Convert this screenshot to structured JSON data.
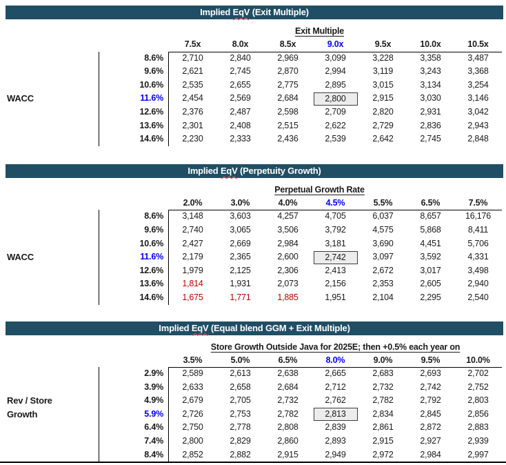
{
  "colors": {
    "title_bar_bg": "#204E64",
    "title_text": "#FFFFFF",
    "accent_blue": "#0000FF",
    "negative_red": "#C00000",
    "boxed_cell_bg": "#ECECEC",
    "squiggle_red": "#FF5A5A"
  },
  "tables": [
    {
      "id": "exit-multiple",
      "title": {
        "pre": "Implied",
        "word": "EqV",
        "post": "(Exit Multiple)"
      },
      "column_axis_label": "Exit Multiple",
      "row_axis_label_lines": [
        "WACC"
      ],
      "row_axis_label_start_row": 3,
      "column_headers": [
        "7.5x",
        "8.0x",
        "8.5x",
        "9.0x",
        "9.5x",
        "10.0x",
        "10.5x"
      ],
      "highlight_col": 3,
      "highlight_row": 3,
      "boxed_cell": {
        "row": 3,
        "col": 3
      },
      "red_cells": [],
      "rows": [
        {
          "header": "8.6%",
          "values": [
            "2,710",
            "2,840",
            "2,969",
            "3,099",
            "3,228",
            "3,358",
            "3,487"
          ]
        },
        {
          "header": "9.6%",
          "values": [
            "2,621",
            "2,745",
            "2,870",
            "2,994",
            "3,119",
            "3,243",
            "3,368"
          ]
        },
        {
          "header": "10.6%",
          "values": [
            "2,535",
            "2,655",
            "2,775",
            "2,895",
            "3,015",
            "3,134",
            "3,254"
          ]
        },
        {
          "header": "11.6%",
          "values": [
            "2,454",
            "2,569",
            "2,684",
            "2,800",
            "2,915",
            "3,030",
            "3,146"
          ]
        },
        {
          "header": "12.6%",
          "values": [
            "2,376",
            "2,487",
            "2,598",
            "2,709",
            "2,820",
            "2,931",
            "3,042"
          ]
        },
        {
          "header": "13.6%",
          "values": [
            "2,301",
            "2,408",
            "2,515",
            "2,622",
            "2,729",
            "2,836",
            "2,943"
          ]
        },
        {
          "header": "14.6%",
          "values": [
            "2,230",
            "2,333",
            "2,436",
            "2,539",
            "2,642",
            "2,745",
            "2,848"
          ]
        }
      ]
    },
    {
      "id": "perpetuity-growth",
      "title": {
        "pre": "Implied",
        "word": "EqV",
        "post": "(Perpetuity Growth)"
      },
      "column_axis_label": "Perpetual Growth Rate",
      "row_axis_label_lines": [
        "WACC"
      ],
      "row_axis_label_start_row": 3,
      "column_headers": [
        "2.0%",
        "3.0%",
        "4.0%",
        "4.5%",
        "5.5%",
        "6.5%",
        "7.5%"
      ],
      "highlight_col": 3,
      "highlight_row": 3,
      "boxed_cell": {
        "row": 3,
        "col": 3
      },
      "red_cells": [
        [
          5,
          0
        ],
        [
          6,
          0
        ],
        [
          6,
          1
        ],
        [
          6,
          2
        ]
      ],
      "rows": [
        {
          "header": "8.6%",
          "values": [
            "3,148",
            "3,603",
            "4,257",
            "4,705",
            "6,037",
            "8,657",
            "16,176"
          ]
        },
        {
          "header": "9.6%",
          "values": [
            "2,740",
            "3,065",
            "3,506",
            "3,792",
            "4,575",
            "5,868",
            "8,411"
          ]
        },
        {
          "header": "10.6%",
          "values": [
            "2,427",
            "2,669",
            "2,984",
            "3,181",
            "3,690",
            "4,451",
            "5,706"
          ]
        },
        {
          "header": "11.6%",
          "values": [
            "2,179",
            "2,365",
            "2,600",
            "2,742",
            "3,097",
            "3,592",
            "4,331"
          ]
        },
        {
          "header": "12.6%",
          "values": [
            "1,979",
            "2,125",
            "2,306",
            "2,413",
            "2,672",
            "3,017",
            "3,498"
          ]
        },
        {
          "header": "13.6%",
          "values": [
            "1,814",
            "1,931",
            "2,073",
            "2,156",
            "2,353",
            "2,605",
            "2,940"
          ]
        },
        {
          "header": "14.6%",
          "values": [
            "1,675",
            "1,771",
            "1,885",
            "1,951",
            "2,104",
            "2,295",
            "2,540"
          ]
        }
      ]
    },
    {
      "id": "equal-blend",
      "title": {
        "pre": "Implied",
        "word": "EqV",
        "post": "(Equal blend GGM + Exit Multiple)"
      },
      "column_axis_label": "Store Growth Outside Java for 2025E; then +0.5% each year on",
      "row_axis_label_lines": [
        "Rev / Store",
        "Growth"
      ],
      "row_axis_label_start_row": 2,
      "column_headers": [
        "3.5%",
        "5.0%",
        "6.5%",
        "8.0%",
        "9.0%",
        "9.5%",
        "10.0%"
      ],
      "highlight_col": 3,
      "highlight_row": 3,
      "boxed_cell": {
        "row": 3,
        "col": 3
      },
      "red_cells": [],
      "rows": [
        {
          "header": "2.9%",
          "values": [
            "2,589",
            "2,613",
            "2,638",
            "2,665",
            "2,683",
            "2,693",
            "2,702"
          ]
        },
        {
          "header": "3.9%",
          "values": [
            "2,633",
            "2,658",
            "2,684",
            "2,712",
            "2,732",
            "2,742",
            "2,752"
          ]
        },
        {
          "header": "4.9%",
          "values": [
            "2,679",
            "2,705",
            "2,732",
            "2,762",
            "2,782",
            "2,792",
            "2,803"
          ]
        },
        {
          "header": "5.9%",
          "values": [
            "2,726",
            "2,753",
            "2,782",
            "2,813",
            "2,834",
            "2,845",
            "2,856"
          ]
        },
        {
          "header": "6.4%",
          "values": [
            "2,750",
            "2,778",
            "2,808",
            "2,839",
            "2,861",
            "2,872",
            "2,883"
          ]
        },
        {
          "header": "7.4%",
          "values": [
            "2,800",
            "2,829",
            "2,860",
            "2,893",
            "2,915",
            "2,927",
            "2,939"
          ]
        },
        {
          "header": "8.4%",
          "values": [
            "2,852",
            "2,882",
            "2,915",
            "2,949",
            "2,972",
            "2,984",
            "2,997"
          ]
        }
      ]
    }
  ]
}
